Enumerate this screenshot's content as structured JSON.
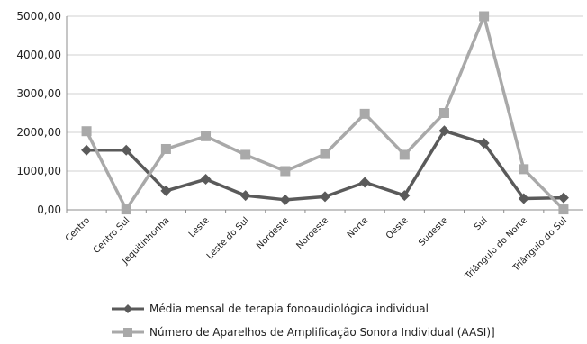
{
  "chart_data": {
    "type": "line",
    "title": "",
    "xlabel": "",
    "ylabel": "",
    "ylim": [
      0,
      5000
    ],
    "yticks": [
      "0,00",
      "1000,00",
      "2000,00",
      "3000,00",
      "4000,00",
      "5000,00"
    ],
    "ytick_values": [
      0,
      1000,
      2000,
      3000,
      4000,
      5000
    ],
    "grid": true,
    "legend_position": "bottom",
    "categories": [
      "Centro",
      "Centro Sul",
      "Jequitinhonha",
      "Leste",
      "Leste do Sul",
      "Nordeste",
      "Noroeste",
      "Norte",
      "Oeste",
      "Sudeste",
      "Sul",
      "Triângulo do Norte",
      "Triângulo do Sul"
    ],
    "series": [
      {
        "name": "Média mensal de terapia fonoaudiológica individual",
        "marker": "diamond",
        "color": "#5a5a5a",
        "values": [
          1540,
          1540,
          490,
          790,
          370,
          260,
          340,
          710,
          370,
          2040,
          1720,
          290,
          310
        ]
      },
      {
        "name": "Número de Aparelhos de Amplificação Sonora Individual (AASI)]",
        "marker": "square",
        "color": "#a9a9a9",
        "values": [
          2030,
          10,
          1570,
          1900,
          1420,
          1000,
          1440,
          2480,
          1420,
          2500,
          5000,
          1050,
          10
        ]
      }
    ]
  }
}
